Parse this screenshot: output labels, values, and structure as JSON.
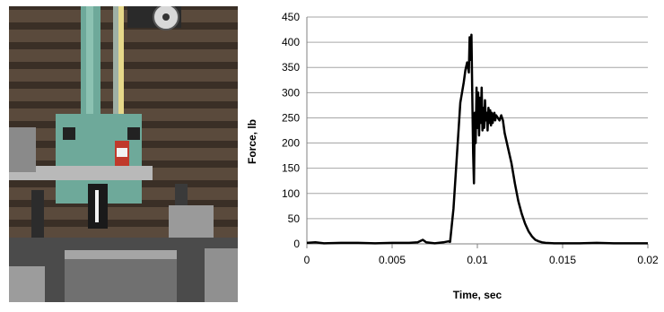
{
  "photo": {
    "subject": "drop-weight impact test apparatus"
  },
  "chart_data": {
    "type": "line",
    "title": "",
    "xlabel": "Time, sec",
    "ylabel": "Force, lb",
    "xlim": [
      0,
      0.02
    ],
    "ylim": [
      0,
      450
    ],
    "xticks": [
      0,
      0.005,
      0.01,
      0.015,
      0.02
    ],
    "xtick_labels": [
      "0",
      "0.005",
      "0.01",
      "0.015",
      "0.02"
    ],
    "yticks": [
      0,
      50,
      100,
      150,
      200,
      250,
      300,
      350,
      400,
      450
    ],
    "ytick_labels": [
      "0",
      "50",
      "100",
      "150",
      "200",
      "250",
      "300",
      "350",
      "400",
      "450"
    ],
    "grid": "horizontal",
    "legend": "none",
    "series": [
      {
        "color": "#000000",
        "x": [
          0,
          0.0005,
          0.001,
          0.002,
          0.003,
          0.004,
          0.005,
          0.006,
          0.0065,
          0.0068,
          0.007,
          0.0075,
          0.008,
          0.0083,
          0.0084,
          0.0086,
          0.0088,
          0.009,
          0.0092,
          0.0093,
          0.0094,
          0.0095,
          0.00955,
          0.0096,
          0.00965,
          0.0097,
          0.00975,
          0.0098,
          0.00985,
          0.0099,
          0.00995,
          0.01,
          0.01005,
          0.0101,
          0.01015,
          0.0102,
          0.01025,
          0.0103,
          0.01035,
          0.0104,
          0.01045,
          0.0105,
          0.01055,
          0.0106,
          0.01065,
          0.0107,
          0.01075,
          0.0108,
          0.01085,
          0.0109,
          0.01095,
          0.011,
          0.01105,
          0.0111,
          0.0112,
          0.0113,
          0.0114,
          0.0115,
          0.0116,
          0.0118,
          0.012,
          0.0122,
          0.0124,
          0.0126,
          0.0128,
          0.013,
          0.0132,
          0.0134,
          0.0136,
          0.0138,
          0.014,
          0.0145,
          0.015,
          0.016,
          0.017,
          0.018,
          0.019,
          0.02
        ],
        "y": [
          2,
          3,
          1,
          2,
          2,
          1,
          2,
          2,
          3,
          8,
          3,
          1,
          3,
          5,
          4,
          70,
          175,
          280,
          320,
          345,
          360,
          340,
          410,
          365,
          415,
          300,
          180,
          120,
          260,
          200,
          310,
          230,
          300,
          215,
          290,
          240,
          310,
          225,
          270,
          230,
          285,
          245,
          260,
          225,
          270,
          240,
          265,
          235,
          260,
          240,
          255,
          260,
          245,
          255,
          250,
          245,
          255,
          245,
          220,
          190,
          160,
          120,
          85,
          60,
          40,
          25,
          15,
          8,
          5,
          3,
          2,
          1,
          1,
          1,
          2,
          1,
          1,
          1
        ]
      }
    ]
  }
}
